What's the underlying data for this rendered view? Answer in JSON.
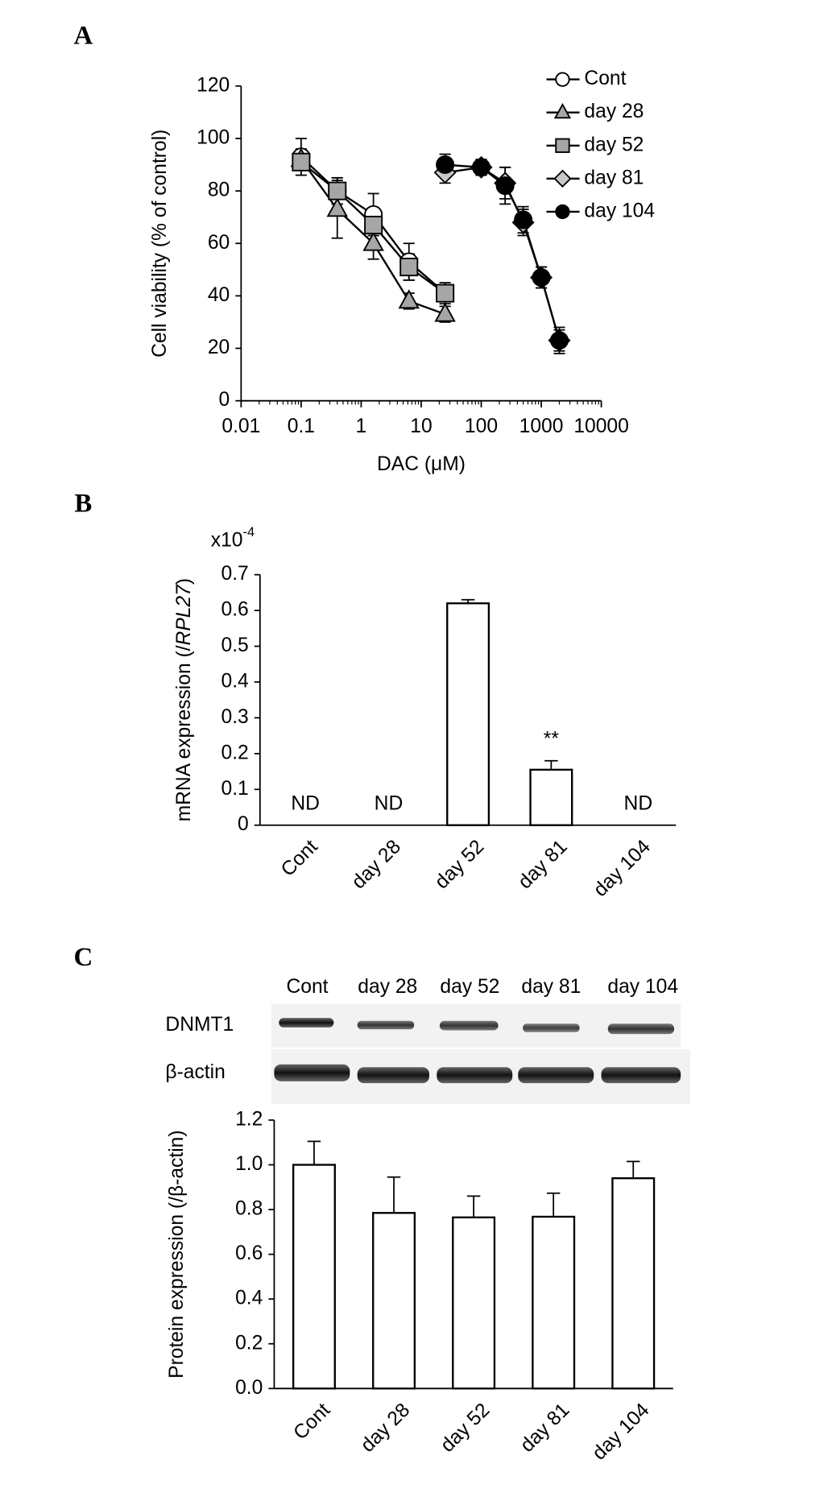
{
  "chart_data": [
    {
      "type": "line",
      "panel": "A",
      "xlabel": "DAC (μM)",
      "ylabel": "Cell viability (% of control)",
      "xscale": "log",
      "xlim": [
        0.01,
        10000
      ],
      "xticks": [
        0.01,
        0.1,
        1,
        10,
        100,
        1000,
        10000
      ],
      "ylim": [
        0,
        120
      ],
      "yticks": [
        0,
        20,
        40,
        60,
        80,
        100,
        120
      ],
      "legend": "upper right",
      "series": [
        {
          "name": "Cont",
          "color": "#ffffff",
          "marker": "circle",
          "x": [
            0.1,
            0.4,
            1.6,
            6.25,
            25
          ],
          "values": [
            93,
            80,
            71,
            53,
            41
          ],
          "errors": [
            7,
            5,
            8,
            7,
            4
          ]
        },
        {
          "name": "day 28",
          "color": "#a6a6a6",
          "marker": "triangle",
          "x": [
            0.1,
            0.4,
            1.6,
            6.25,
            25
          ],
          "values": [
            92,
            73,
            60,
            38,
            33
          ],
          "errors": [
            4,
            11,
            6,
            3,
            3
          ]
        },
        {
          "name": "day 52",
          "color": "#a6a6a6",
          "marker": "square",
          "x": [
            0.1,
            0.4,
            1.6,
            6.25,
            25
          ],
          "values": [
            91,
            80,
            67,
            51,
            41
          ],
          "errors": [
            3,
            5,
            4,
            5,
            3
          ]
        },
        {
          "name": "day 81",
          "color": "#c8c8c8",
          "marker": "diamond",
          "x": [
            25,
            100,
            250,
            500,
            1000,
            2000
          ],
          "values": [
            87,
            89,
            83,
            68,
            47,
            23
          ],
          "errors": [
            4,
            3,
            6,
            5,
            4,
            5
          ]
        },
        {
          "name": "day 104",
          "color": "#000000",
          "marker": "circle",
          "x": [
            25,
            100,
            250,
            500,
            1000,
            2000
          ],
          "values": [
            90,
            89,
            82,
            69,
            47,
            23
          ],
          "errors": [
            4,
            3,
            7,
            5,
            4,
            4
          ]
        }
      ]
    },
    {
      "type": "bar",
      "panel": "B",
      "axis_scale": "x10",
      "axis_scale_exp": "-4",
      "ylabel": [
        {
          "text": "mRNA expression (/"
        },
        {
          "text": "RPL27",
          "italic": true
        },
        {
          "text": ")"
        }
      ],
      "categories": [
        "Cont",
        "day 28",
        "day 52",
        "day 81",
        "day 104"
      ],
      "values": [
        null,
        null,
        0.62,
        0.155,
        null
      ],
      "errors": [
        null,
        null,
        0.01,
        0.025,
        null
      ],
      "value_labels": [
        "ND",
        "ND",
        null,
        null,
        "ND"
      ],
      "significance": [
        null,
        null,
        null,
        "**",
        null
      ],
      "color": "#ffffff",
      "ylim": [
        0,
        0.7
      ],
      "yticks": [
        0,
        0.1,
        0.2,
        0.3,
        0.4,
        0.5,
        0.6,
        0.7
      ]
    },
    {
      "type": "bar",
      "panel": "C",
      "ylabel": "Protein expression (/β-actin)",
      "blot": {
        "lanes": [
          "Cont",
          "day 28",
          "day 52",
          "day 81",
          "day 104"
        ],
        "rows": [
          "DNMT1",
          "β-actin"
        ]
      },
      "categories": [
        "Cont",
        "day 28",
        "day 52",
        "day 81",
        "day 104"
      ],
      "values": [
        1.0,
        0.785,
        0.765,
        0.768,
        0.94
      ],
      "errors": [
        0.105,
        0.16,
        0.095,
        0.105,
        0.075
      ],
      "color": "#ffffff",
      "ylim": [
        0,
        1.2
      ],
      "yticks": [
        {
          "value": 0,
          "label": "0.0"
        },
        0.2,
        0.4,
        0.6,
        0.8,
        {
          "value": 1,
          "label": "1.0"
        },
        1.2
      ]
    }
  ]
}
